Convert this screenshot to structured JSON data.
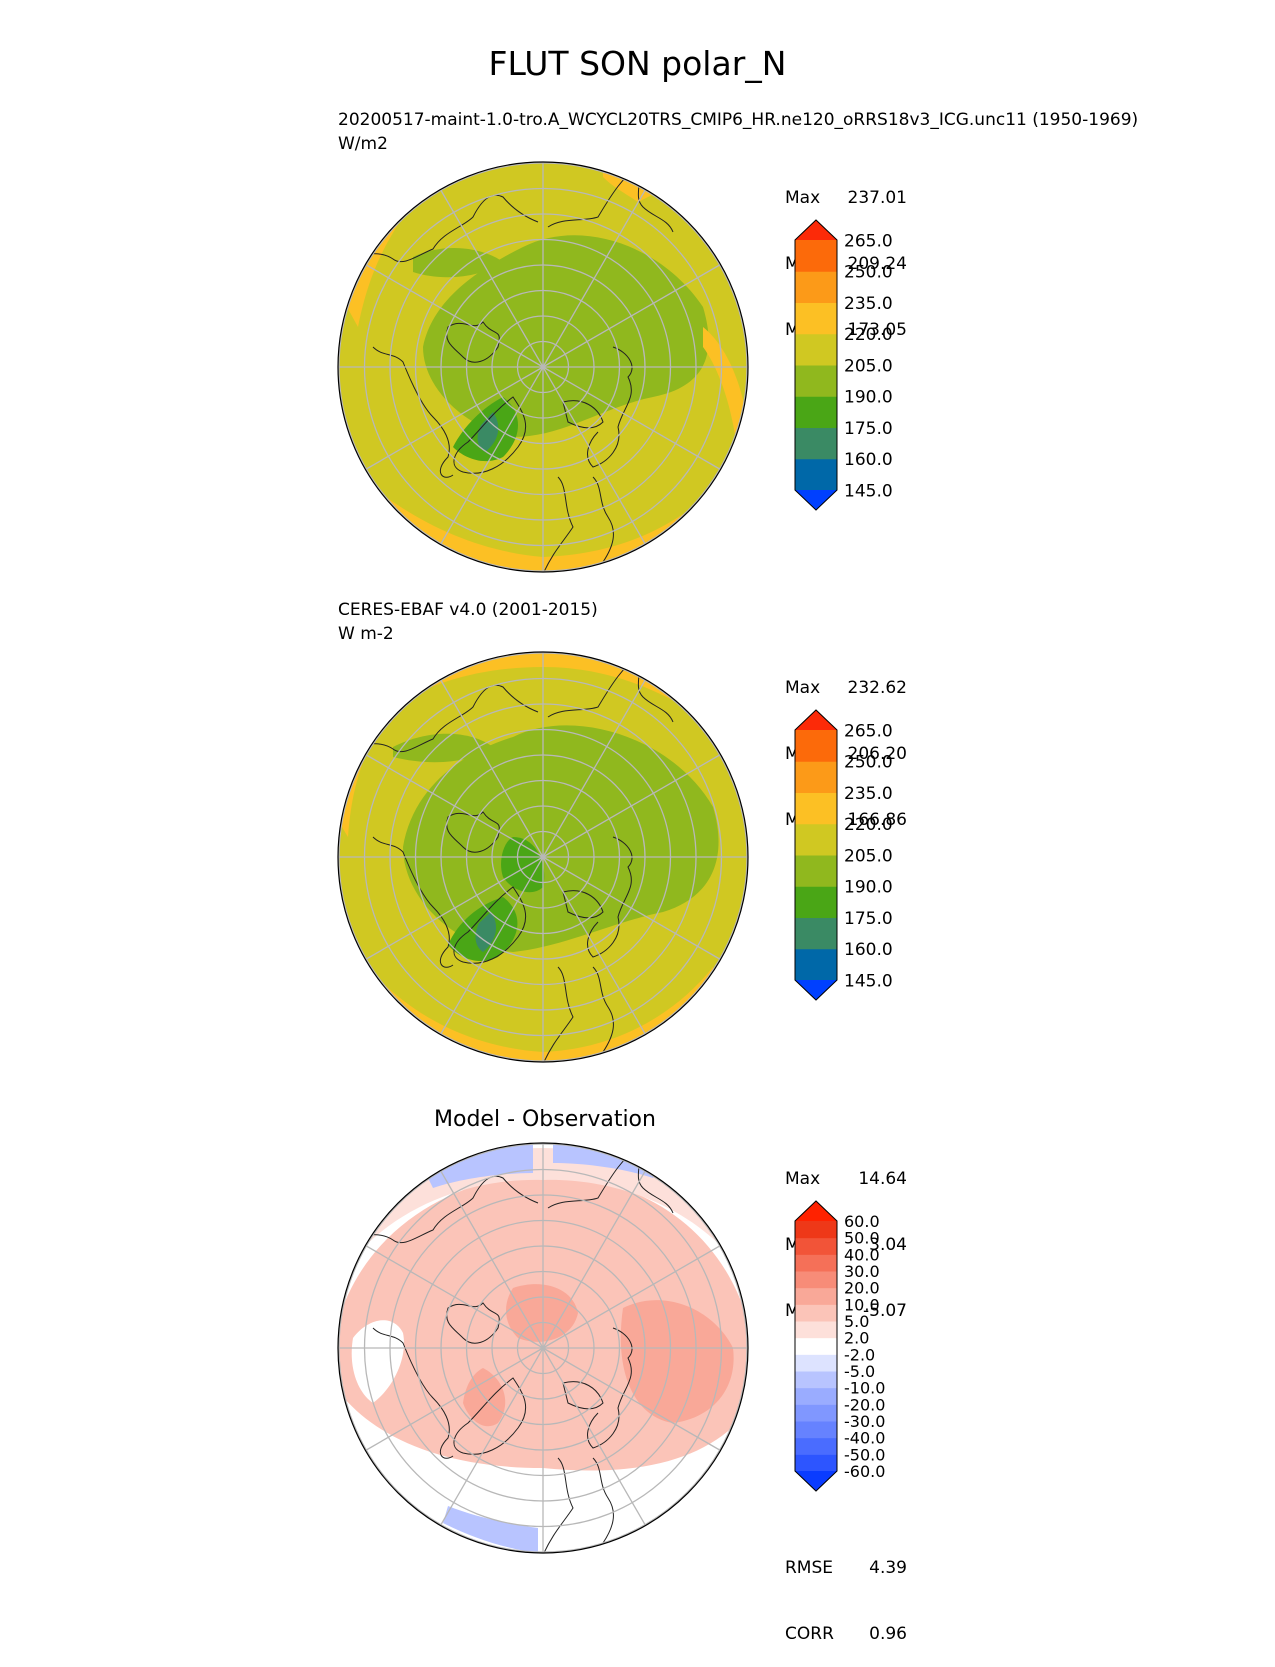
{
  "figure_title": "FLUT SON polar_N",
  "chart_data": [
    {
      "type": "heatmap",
      "projection": "north polar stereographic",
      "title": "20200517-maint-1.0-tro.A_WCYCL20TRS_CMIP6_HR.ne120_oRRS18v3_ICG.unc11 (1950-1969)",
      "units": "W/m2",
      "stats": {
        "max": "237.01",
        "mean": "209.24",
        "min": "173.05"
      },
      "levels": [
        "145.0",
        "160.0",
        "175.0",
        "190.0",
        "205.0",
        "220.0",
        "235.0",
        "250.0",
        "265.0"
      ],
      "colors": [
        "#0040ff",
        "#0068a8",
        "#3a8a64",
        "#4aa616",
        "#90b81e",
        "#d0c822",
        "#fcc024",
        "#fc9a18",
        "#fc6a0a",
        "#fc2a08"
      ],
      "background_color": "#d0c822"
    },
    {
      "type": "heatmap",
      "projection": "north polar stereographic",
      "title": "CERES-EBAF v4.0 (2001-2015)",
      "units": "W m-2",
      "stats": {
        "max": "232.62",
        "mean": "206.20",
        "min": "166.86"
      },
      "levels": [
        "145.0",
        "160.0",
        "175.0",
        "190.0",
        "205.0",
        "220.0",
        "235.0",
        "250.0",
        "265.0"
      ],
      "colors": [
        "#0040ff",
        "#0068a8",
        "#3a8a64",
        "#4aa616",
        "#90b81e",
        "#d0c822",
        "#fcc024",
        "#fc9a18",
        "#fc6a0a",
        "#fc2a08"
      ],
      "background_color": "#d0c822"
    },
    {
      "type": "heatmap",
      "projection": "north polar stereographic",
      "title": "Model - Observation",
      "stats": {
        "max": "14.64",
        "mean": "3.04",
        "min": "-5.07"
      },
      "levels": [
        "-60.0",
        "-50.0",
        "-40.0",
        "-30.0",
        "-20.0",
        "-10.0",
        "-5.0",
        "-2.0",
        "2.0",
        "5.0",
        "10.0",
        "20.0",
        "30.0",
        "40.0",
        "50.0",
        "60.0"
      ],
      "colors": [
        "#0a3cff",
        "#2d55ff",
        "#4a6cff",
        "#6682ff",
        "#8097ff",
        "#9aacff",
        "#b8c4ff",
        "#dde3ff",
        "#ffffff",
        "#fde0da",
        "#fbc4b8",
        "#f9a898",
        "#f78c78",
        "#f57058",
        "#f25438",
        "#ee3818",
        "#ff2200"
      ],
      "background_color": "#ffffff",
      "rmse": "4.39",
      "corr": "0.96"
    }
  ],
  "labels": {
    "max": "Max",
    "mean": "Mean",
    "min": "Min",
    "rmse": "RMSE",
    "corr": "CORR"
  }
}
